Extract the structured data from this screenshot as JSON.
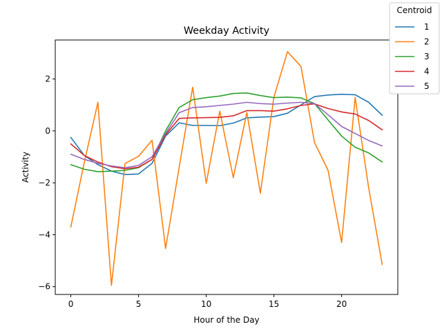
{
  "chart_data": {
    "type": "line",
    "title": "Weekday Activity",
    "xlabel": "Hour of the Day",
    "ylabel": "Activity",
    "xlim": [
      -1.15,
      24.15
    ],
    "ylim": [
      -6.3,
      3.5
    ],
    "xticks": [
      0,
      5,
      10,
      15,
      20
    ],
    "yticks": [
      -6,
      -4,
      -2,
      0,
      2
    ],
    "grid": false,
    "legend": {
      "title": "Centroid",
      "placement": "outside top-right"
    },
    "x": [
      0,
      1,
      2,
      3,
      4,
      5,
      6,
      7,
      8,
      9,
      10,
      11,
      12,
      13,
      14,
      15,
      16,
      17,
      18,
      19,
      20,
      21,
      22,
      23
    ],
    "series": [
      {
        "name": "1",
        "color": "#1f77b4",
        "values": [
          -0.25,
          -0.95,
          -1.3,
          -1.55,
          -1.68,
          -1.66,
          -1.25,
          -0.2,
          0.31,
          0.21,
          0.21,
          0.2,
          0.3,
          0.5,
          0.53,
          0.55,
          0.68,
          1.0,
          1.32,
          1.38,
          1.41,
          1.39,
          1.1,
          0.6
        ]
      },
      {
        "name": "2",
        "color": "#ff7f0e",
        "values": [
          -3.7,
          -1.2,
          1.1,
          -5.95,
          -1.26,
          -0.98,
          -0.36,
          -4.53,
          -1.41,
          1.68,
          -2.02,
          0.76,
          -1.8,
          0.71,
          -2.4,
          1.3,
          3.05,
          2.48,
          -0.45,
          -1.52,
          -4.3,
          1.29,
          -2.2,
          -5.15
        ]
      },
      {
        "name": "3",
        "color": "#2ca02c",
        "values": [
          -1.3,
          -1.48,
          -1.57,
          -1.55,
          -1.52,
          -1.42,
          -1.1,
          0.0,
          0.9,
          1.2,
          1.28,
          1.34,
          1.44,
          1.46,
          1.36,
          1.28,
          1.3,
          1.27,
          1.05,
          0.42,
          -0.2,
          -0.63,
          -0.85,
          -1.2
        ]
      },
      {
        "name": "4",
        "color": "#d62728",
        "values": [
          -0.5,
          -0.95,
          -1.2,
          -1.38,
          -1.46,
          -1.4,
          -1.1,
          -0.15,
          0.48,
          0.5,
          0.51,
          0.52,
          0.58,
          0.78,
          0.78,
          0.76,
          0.85,
          0.98,
          1.04,
          0.86,
          0.73,
          0.65,
          0.4,
          0.04
        ]
      },
      {
        "name": "5",
        "color": "#9467bd",
        "values": [
          -0.9,
          -1.1,
          -1.25,
          -1.35,
          -1.42,
          -1.33,
          -1.0,
          -0.1,
          0.7,
          0.9,
          0.93,
          0.98,
          1.03,
          1.1,
          1.05,
          1.03,
          1.07,
          1.1,
          1.05,
          0.62,
          0.17,
          -0.1,
          -0.37,
          -0.58
        ]
      }
    ]
  }
}
